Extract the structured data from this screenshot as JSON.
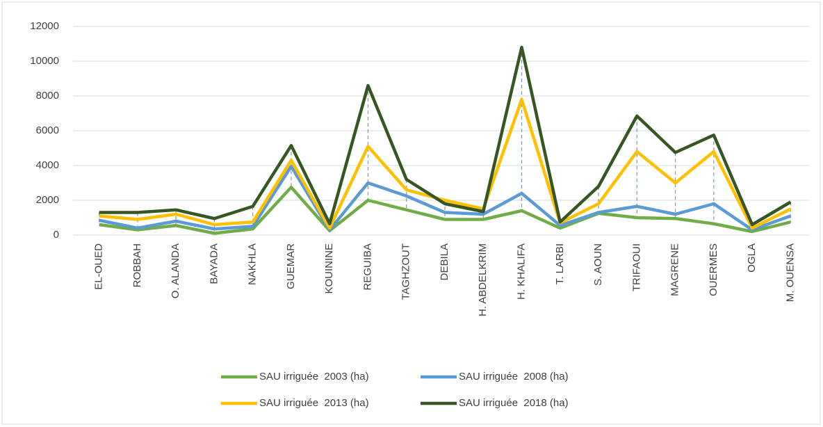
{
  "chart_data": {
    "type": "line",
    "categories": [
      "EL-OUED",
      "ROBBAH",
      "O. ALANDA",
      "BAYADA",
      "NAKHLA",
      "GUEMAR",
      "KOUININE",
      "REGUIBA",
      "TAGHZOUT",
      "DEBILA",
      "H. ABDELKRIM",
      "H. KHALIFA",
      "T. LARBI",
      "S. AOUN",
      "TRIFAOUI",
      "MAGRENE",
      "OUERMES",
      "OGLA",
      "M. OUENSA"
    ],
    "series": [
      {
        "name": "SAU irriguée  2003 (ha)",
        "color": "#70ad47",
        "values": [
          600,
          300,
          550,
          100,
          350,
          2750,
          250,
          2000,
          1450,
          900,
          900,
          1400,
          400,
          1250,
          1000,
          950,
          650,
          200,
          750
        ]
      },
      {
        "name": "SAU irriguée  2008 (ha)",
        "color": "#5b9bd5",
        "values": [
          850,
          400,
          800,
          350,
          500,
          3950,
          300,
          3000,
          2250,
          1300,
          1200,
          2400,
          550,
          1300,
          1650,
          1200,
          1800,
          300,
          1100
        ]
      },
      {
        "name": "SAU irriguée  2013 (ha)",
        "color": "#ffc000",
        "values": [
          1100,
          900,
          1200,
          600,
          750,
          4300,
          400,
          5100,
          2600,
          2000,
          1500,
          7800,
          700,
          1800,
          4800,
          3000,
          4800,
          400,
          1500
        ]
      },
      {
        "name": "SAU irriguée  2018 (ha)",
        "color": "#375623",
        "values": [
          1300,
          1300,
          1450,
          950,
          1650,
          5150,
          650,
          8600,
          3200,
          1800,
          1350,
          10800,
          750,
          2800,
          6850,
          4750,
          5750,
          600,
          1900
        ]
      }
    ],
    "ylim": [
      0,
      12000
    ],
    "yticks": [
      0,
      2000,
      4000,
      6000,
      8000,
      10000,
      12000
    ],
    "grid": true,
    "drop_lines": true,
    "legend": "bottom"
  }
}
